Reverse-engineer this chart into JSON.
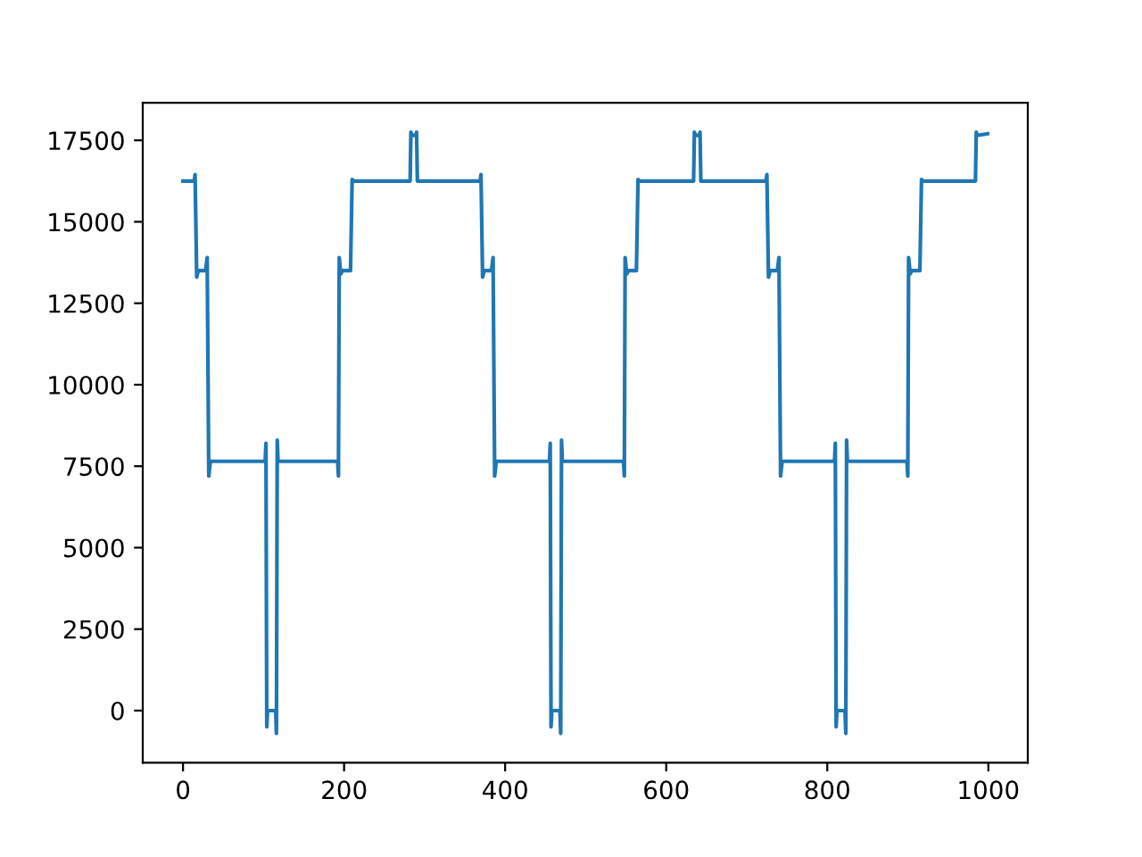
{
  "chart_data": {
    "type": "line",
    "xlim": [
      -50,
      1049
    ],
    "ylim": [
      -1600,
      18650
    ],
    "xticks": [
      0,
      200,
      400,
      600,
      800,
      1000
    ],
    "yticks": [
      0,
      2500,
      5000,
      7500,
      10000,
      12500,
      15000,
      17500
    ],
    "grid": false,
    "marker": "none",
    "line_style": "solid",
    "series": [
      {
        "color": "#1f77b4",
        "x": [
          0,
          14,
          15,
          17,
          19,
          28,
          30,
          32,
          34,
          102,
          103,
          104,
          105,
          115,
          116,
          117,
          118,
          192,
          193,
          194,
          196,
          198,
          208,
          210,
          212,
          282,
          283,
          284,
          289,
          290,
          291,
          369,
          370,
          372,
          374,
          383,
          385,
          387,
          389,
          455,
          456,
          457,
          458,
          468,
          469,
          470,
          471,
          547,
          548,
          549,
          551,
          553,
          563,
          565,
          567,
          634,
          635,
          636,
          641,
          642,
          643,
          724,
          725,
          727,
          729,
          738,
          740,
          742,
          744,
          809,
          810,
          811,
          812,
          822,
          823,
          824,
          825,
          899,
          900,
          901,
          903,
          905,
          915,
          917,
          919,
          984,
          985,
          986,
          999
        ],
        "values": [
          16250,
          16250,
          16450,
          13300,
          13500,
          13500,
          13900,
          7200,
          7650,
          7650,
          8200,
          -500,
          0,
          0,
          -700,
          8300,
          7650,
          7650,
          7200,
          13900,
          13400,
          13500,
          13500,
          16300,
          16250,
          16250,
          17750,
          17650,
          17650,
          17750,
          16250,
          16250,
          16450,
          13300,
          13500,
          13500,
          13900,
          7200,
          7650,
          7650,
          8200,
          -500,
          0,
          0,
          -700,
          8300,
          7650,
          7650,
          7200,
          13900,
          13400,
          13500,
          13500,
          16300,
          16250,
          16250,
          17750,
          17650,
          17650,
          17750,
          16250,
          16250,
          16450,
          13300,
          13500,
          13500,
          13900,
          7200,
          7650,
          7650,
          8200,
          -500,
          0,
          0,
          -700,
          8300,
          7650,
          7650,
          7200,
          13900,
          13400,
          13500,
          13500,
          16300,
          16250,
          16250,
          17750,
          17650,
          17700
        ]
      }
    ]
  }
}
